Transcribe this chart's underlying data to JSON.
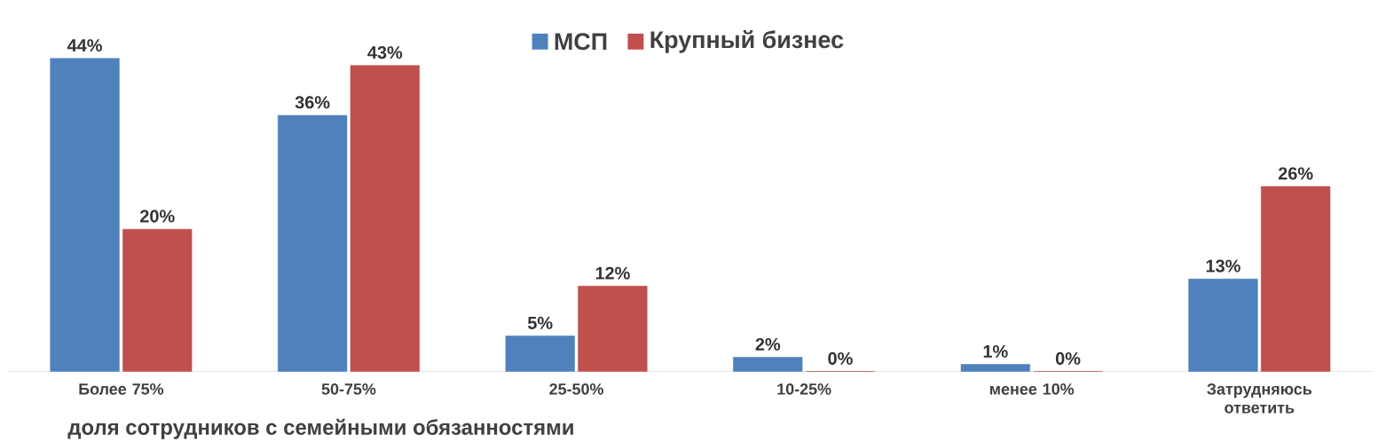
{
  "chart_data": {
    "type": "bar",
    "xlabel": "доля сотрудников с семейными обязанностями",
    "categories": [
      "Более 75%",
      "50-75%",
      "25-50%",
      "10-25%",
      "менее 10%",
      "Затрудняюсь ответить"
    ],
    "series": [
      {
        "name": "МСП",
        "color": "#4f81bd",
        "values": [
          44,
          36,
          5,
          2,
          1,
          13
        ],
        "value_labels": [
          "44%",
          "36%",
          "5%",
          "2%",
          "1%",
          "13%"
        ]
      },
      {
        "name": "Крупный бизнес",
        "color": "#c0504d",
        "values": [
          20,
          43,
          12,
          0,
          0,
          26
        ],
        "value_labels": [
          "20%",
          "43%",
          "12%",
          "0%",
          "0%",
          "26%"
        ]
      }
    ],
    "legend": "top"
  }
}
